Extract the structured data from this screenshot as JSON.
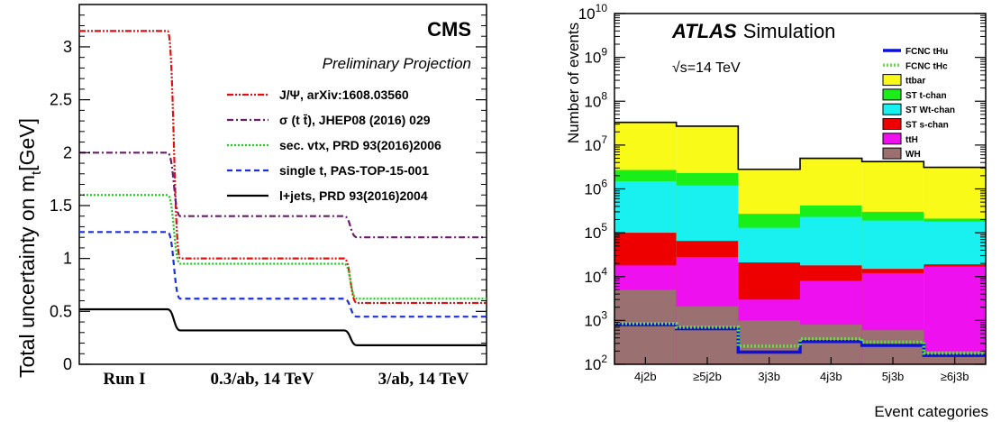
{
  "chart_data": [
    {
      "type": "line",
      "experiment": "CMS",
      "subtitle": "Preliminary Projection",
      "ylabel_main": "Total uncertainty on m",
      "ylabel_sub": "t",
      "ylabel_unit": "[GeV]",
      "xlabel": "",
      "categories": [
        "Run I",
        "0.3/ab, 14 TeV",
        "3/ab, 14 TeV"
      ],
      "ylim": [
        0,
        3.4
      ],
      "yticks": [
        0,
        0.5,
        1,
        1.5,
        2,
        2.5,
        3
      ],
      "ytick_labels": [
        "0",
        "0.5",
        "1",
        "1.5",
        "2",
        "2.5",
        "3"
      ],
      "grid": false,
      "legend_position": "right",
      "series": [
        {
          "name": "J/Ψ, arXiv:1608.03560",
          "color": "#e01010",
          "dash": "dash-dot-dot",
          "values": [
            3.15,
            1.0,
            0.58
          ]
        },
        {
          "name": "σ (t t̄), JHEP08 (2016) 029",
          "color": "#6a1b6a",
          "dash": "dash-dot",
          "values": [
            2.0,
            1.4,
            1.2
          ]
        },
        {
          "name": "sec. vtx, PRD 93(2016)2006",
          "color": "#19d019",
          "dash": "dotted",
          "values": [
            1.6,
            0.95,
            0.62
          ]
        },
        {
          "name": "single t, PAS-TOP-15-001",
          "color": "#1b2fe0",
          "dash": "dashed",
          "values": [
            1.25,
            0.62,
            0.45
          ]
        },
        {
          "name": "l+jets, PRD 93(2016)2004",
          "color": "#000000",
          "dash": "solid",
          "values": [
            0.52,
            0.32,
            0.18
          ]
        }
      ]
    },
    {
      "type": "bar",
      "stacked": true,
      "log_y": true,
      "experiment": "ATLAS",
      "label": "Simulation",
      "energy": "√s=14 TeV",
      "ylabel": "Number of events",
      "xlabel": "Event categories",
      "categories": [
        "4j2b",
        "≥5j2b",
        "3j3b",
        "4j3b",
        "5j3b",
        "≥6j3b"
      ],
      "ylim": [
        100,
        10000000000
      ],
      "ytick_exponents": [
        2,
        3,
        4,
        5,
        6,
        7,
        8,
        9,
        10
      ],
      "ytick_base": "10",
      "legend_position": "top-right",
      "stack": [
        {
          "name": "WH",
          "color": "#9a7070",
          "values": [
            5000,
            2100,
            1000,
            800,
            600,
            200
          ]
        },
        {
          "name": "ttH",
          "color": "#ee10ee",
          "values": [
            18000,
            28000,
            3000,
            8000,
            12000,
            17000
          ]
        },
        {
          "name": "ST s-chan",
          "color": "#ee0000",
          "values": [
            100000,
            65000,
            21000,
            18000,
            15000,
            19000
          ]
        },
        {
          "name": "ST Wt-chan",
          "color": "#19f0f0",
          "values": [
            1500000,
            1200000,
            130000,
            230000,
            190000,
            180000
          ]
        },
        {
          "name": "ST t-chan",
          "color": "#19ee19",
          "values": [
            2700000,
            2300000,
            270000,
            420000,
            300000,
            210000
          ]
        },
        {
          "name": "ttbar",
          "color": "#fafa19",
          "values": [
            33000000,
            27000000,
            2800000,
            5000000,
            4200000,
            3100000
          ]
        }
      ],
      "signals": [
        {
          "name": "FCNC tHu",
          "color": "#0a10e0",
          "dash": "solid",
          "values": [
            800,
            650,
            190,
            330,
            270,
            160
          ]
        },
        {
          "name": "FCNC tHc",
          "color": "#66dd44",
          "dash": "dotted",
          "values": [
            850,
            700,
            260,
            380,
            320,
            180
          ]
        }
      ]
    }
  ]
}
